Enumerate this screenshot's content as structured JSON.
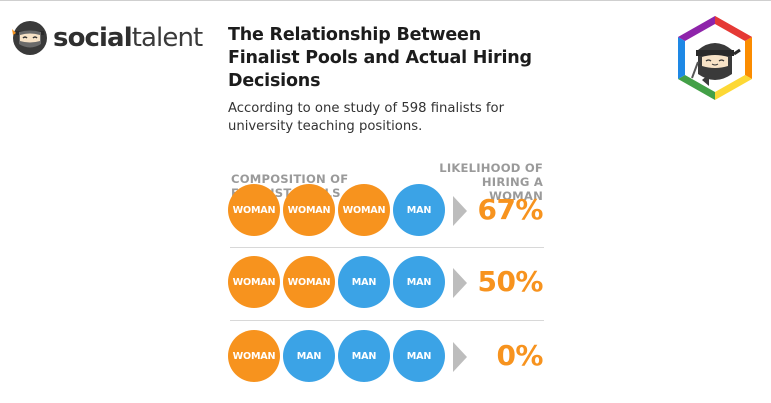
{
  "brand": {
    "name_part1": "social",
    "name_part2": "talent",
    "logo_colors": {
      "ring": "#3a3a3a",
      "accent": "#f7931e"
    },
    "badge_colors": [
      "#e53935",
      "#fb8c00",
      "#fdd835",
      "#43a047",
      "#1e88e5",
      "#8e24aa"
    ]
  },
  "infographic": {
    "title": "The Relationship Between Finalist Pools and Actual Hiring Decisions",
    "subtitle": "According to one study of 598 finalists for university teaching positions.",
    "header_left": "COMPOSITION OF FINALIST POOLS",
    "header_right": "LIKELIHOOD OF HIRING A WOMAN",
    "colors": {
      "woman": "#f7931e",
      "man": "#3ba3e6",
      "arrow": "#bdbdbd",
      "percent": "#f7931e"
    },
    "rows": [
      {
        "pool": [
          "WOMAN",
          "WOMAN",
          "WOMAN",
          "MAN"
        ],
        "likelihood": "67%"
      },
      {
        "pool": [
          "WOMAN",
          "WOMAN",
          "MAN",
          "MAN"
        ],
        "likelihood": "50%"
      },
      {
        "pool": [
          "WOMAN",
          "MAN",
          "MAN",
          "MAN"
        ],
        "likelihood": "0%"
      }
    ]
  }
}
